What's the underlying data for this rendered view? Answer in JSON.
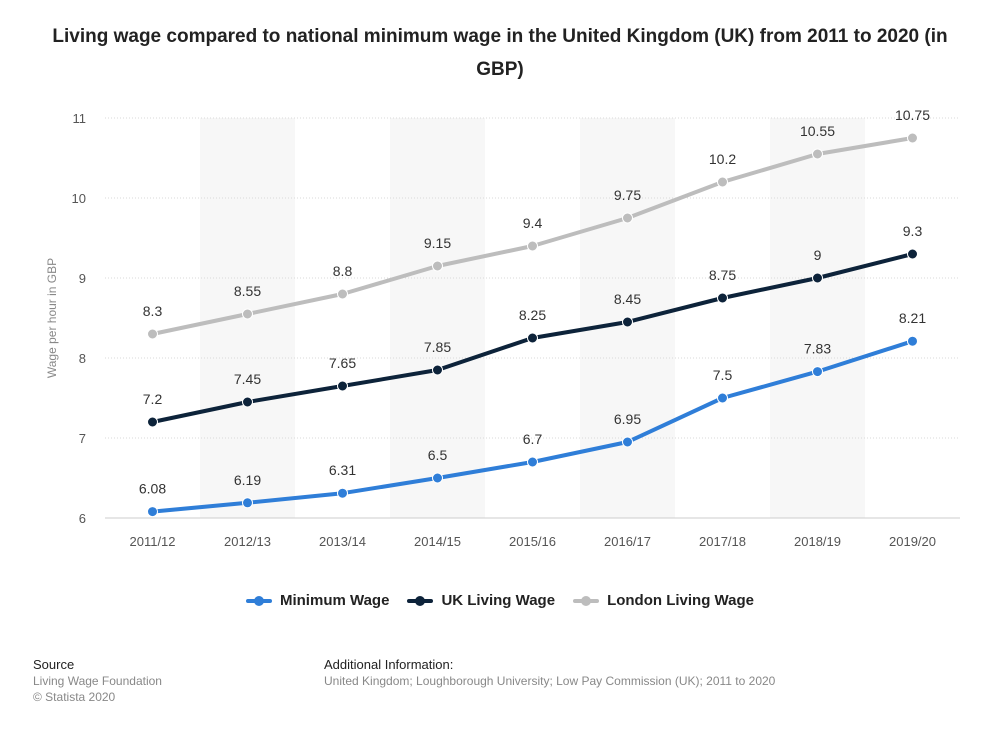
{
  "title": "Living wage compared to national minimum wage in the United Kingdom (UK) from 2011 to 2020 (in GBP)",
  "colors": {
    "minimum": "#2f7ed8",
    "uk": "#0d233a",
    "london": "#bdbdbd",
    "band": "#f7f7f7",
    "grid": "#d8d8d8"
  },
  "chart_data": {
    "type": "line",
    "ylabel": "Wage per hour in GBP",
    "xlabel": "",
    "ylim": [
      6,
      11
    ],
    "yticks": [
      6,
      7,
      8,
      9,
      10,
      11
    ],
    "categories": [
      "2011/12",
      "2012/13",
      "2013/14",
      "2014/15",
      "2015/16",
      "2016/17",
      "2017/18",
      "2018/19",
      "2019/20"
    ],
    "series": [
      {
        "name": "Minimum Wage",
        "values": [
          6.08,
          6.19,
          6.31,
          6.5,
          6.7,
          6.95,
          7.5,
          7.83,
          8.21
        ]
      },
      {
        "name": "UK Living Wage",
        "values": [
          7.2,
          7.45,
          7.65,
          7.85,
          8.25,
          8.45,
          8.75,
          9,
          9.3
        ]
      },
      {
        "name": "London Living Wage",
        "values": [
          8.3,
          8.55,
          8.8,
          9.15,
          9.4,
          9.75,
          10.2,
          10.55,
          10.75
        ]
      }
    ],
    "grid": true,
    "legend_position": "bottom"
  },
  "footer": {
    "source_heading": "Source",
    "source_lines": [
      "Living Wage Foundation",
      "© Statista 2020"
    ],
    "info_heading": "Additional Information:",
    "info_text": "United Kingdom; Loughborough University; Low Pay Commission (UK); 2011 to 2020"
  }
}
